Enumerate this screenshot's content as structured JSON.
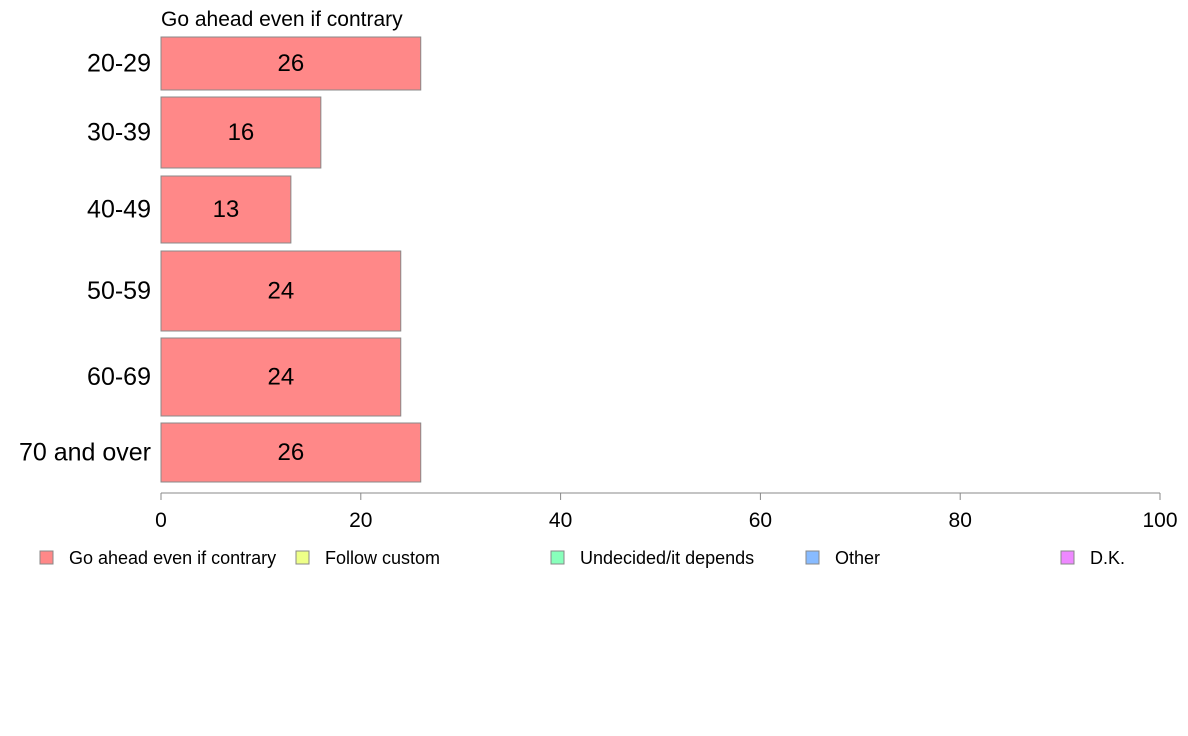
{
  "chart_data": {
    "type": "bar",
    "orientation": "horizontal",
    "title": "Go ahead even if contrary",
    "categories": [
      "20-29",
      "30-39",
      "40-49",
      "50-59",
      "60-69",
      "70 and over"
    ],
    "series": [
      {
        "name": "Go ahead even if contrary",
        "color": "#ff8888",
        "values": [
          26,
          16,
          13,
          24,
          24,
          26
        ],
        "value_labels": [
          "26",
          "16",
          "13",
          "24",
          "24",
          "26"
        ]
      }
    ],
    "xlim": [
      0,
      100
    ],
    "xticks": [
      0,
      20,
      40,
      60,
      80,
      100
    ],
    "xtick_labels": [
      "0",
      "20",
      "40",
      "60",
      "80",
      "100"
    ],
    "xlabel": "",
    "ylabel": "",
    "grid": false,
    "legend_position": "bottom",
    "legend": [
      {
        "label": "Go ahead even if contrary",
        "color": "#ff8888"
      },
      {
        "label": "Follow custom",
        "color": "#eeff88"
      },
      {
        "label": "Undecided/it depends",
        "color": "#88ffbb"
      },
      {
        "label": "Other",
        "color": "#88bbff"
      },
      {
        "label": "D.K.",
        "color": "#ee88ff"
      }
    ]
  }
}
